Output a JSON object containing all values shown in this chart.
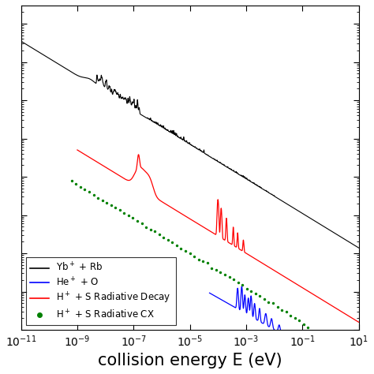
{
  "xlim": [
    1e-11,
    10
  ],
  "xlabel": "collision energy E (eV)",
  "xlabel_fontsize": 15,
  "tick_fontsize": 10,
  "background_color": "#ffffff"
}
